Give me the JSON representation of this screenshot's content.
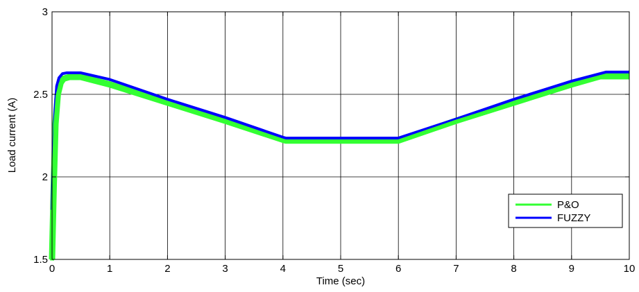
{
  "chart_data": {
    "type": "line",
    "title": "",
    "xlabel": "Time (sec)",
    "ylabel": "Load current (A)",
    "xlim": [
      0,
      10
    ],
    "ylim": [
      1.5,
      3
    ],
    "xticks": [
      "0",
      "1",
      "2",
      "3",
      "4",
      "5",
      "6",
      "7",
      "8",
      "9",
      "10"
    ],
    "yticks": [
      "1.5",
      "2",
      "2.5",
      "3"
    ],
    "grid": true,
    "legend_position": "lower-right",
    "series": [
      {
        "name": "P&O",
        "color": "#33ff33",
        "x": [
          0,
          0.03,
          0.06,
          0.1,
          0.15,
          0.2,
          0.3,
          0.5,
          1,
          2,
          3,
          4,
          4.05,
          5,
          6,
          7,
          8,
          9,
          9.5,
          9.6,
          10
        ],
        "y": [
          1.5,
          1.95,
          2.32,
          2.5,
          2.57,
          2.595,
          2.605,
          2.605,
          2.56,
          2.45,
          2.34,
          2.225,
          2.22,
          2.22,
          2.22,
          2.34,
          2.45,
          2.56,
          2.61,
          2.61,
          2.61
        ]
      },
      {
        "name": "FUZZY",
        "color": "#0000ff",
        "x": [
          0,
          0.02,
          0.05,
          0.08,
          0.12,
          0.18,
          0.25,
          0.5,
          1,
          2,
          3,
          4,
          4.05,
          5,
          6,
          7,
          8,
          9,
          9.6,
          10
        ],
        "y": [
          1.8,
          2.1,
          2.4,
          2.55,
          2.6,
          2.625,
          2.63,
          2.63,
          2.59,
          2.47,
          2.36,
          2.24,
          2.235,
          2.235,
          2.235,
          2.35,
          2.47,
          2.58,
          2.635,
          2.635
        ]
      }
    ]
  }
}
